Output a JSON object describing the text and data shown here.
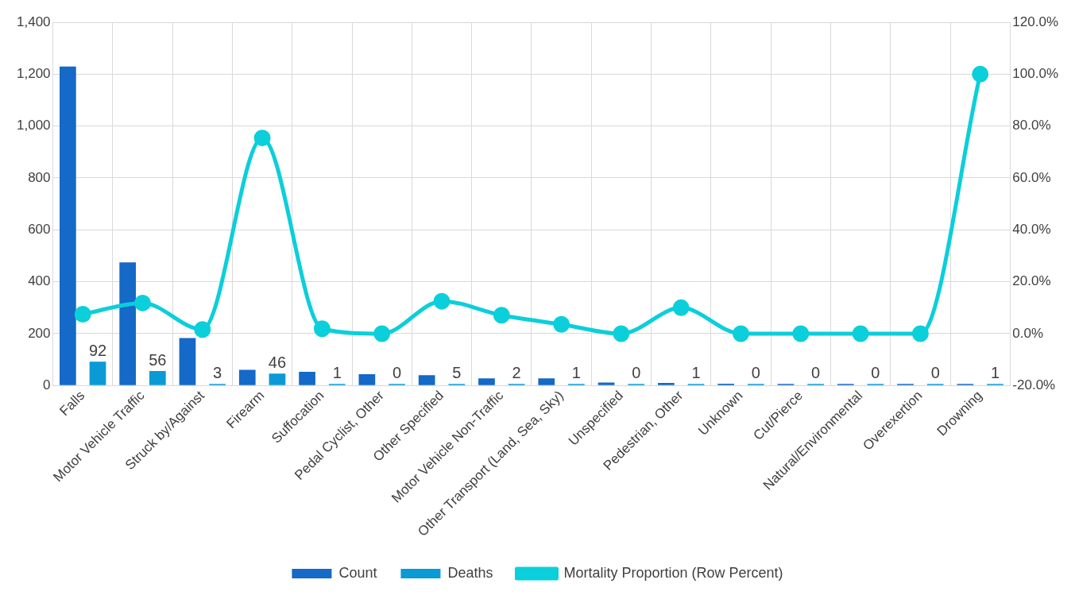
{
  "chart_data": {
    "type": "bar",
    "categories": [
      "Falls",
      "Motor Vehicle Traffic",
      "Struck by/Against",
      "Firearm",
      "Suffocation",
      "Pedal Cyclist, Other",
      "Other Specified",
      "Motor Vehicle Non-Traffic",
      "Other Transport (Land, Sea, Sky)",
      "Unspecified",
      "Pedestrian, Other",
      "Unknown",
      "Cut/Pierce",
      "Natural/Environmental",
      "Overexertion",
      "Drowning"
    ],
    "series": [
      {
        "name": "Count",
        "color": "#1569c7",
        "values": [
          1229,
          475,
          183,
          61,
          53,
          44,
          40,
          28,
          28,
          12,
          10,
          7,
          5,
          3,
          1,
          1
        ]
      },
      {
        "name": "Deaths",
        "color": "#0a9ad6",
        "values": [
          92,
          56,
          3,
          46,
          1,
          0,
          5,
          2,
          1,
          0,
          1,
          0,
          0,
          0,
          0,
          1
        ],
        "value_labels": [
          "92",
          "56",
          "3",
          "46",
          "1",
          "0",
          "5",
          "2",
          "1",
          "0",
          "1",
          "0",
          "0",
          "0",
          "0",
          "1"
        ]
      },
      {
        "name": "Mortality Proportion (Row Percent)",
        "type": "line",
        "axis": "y2",
        "color": "#0bcfda",
        "marker": "circle",
        "values": [
          7.5,
          11.8,
          1.6,
          75.4,
          1.9,
          0,
          12.5,
          7.1,
          3.6,
          0,
          10,
          0,
          0,
          0,
          0,
          100
        ]
      }
    ],
    "ylim": [
      0,
      1400
    ],
    "yticks": [
      0,
      200,
      400,
      600,
      800,
      {
        "value": 1000,
        "label": "1,000"
      },
      {
        "value": 1200,
        "label": "1,200"
      },
      {
        "value": 1400,
        "label": "1,400"
      }
    ],
    "y2lim": [
      -20,
      120
    ],
    "y2ticks": [
      {
        "value": -20,
        "label": "-20.0%"
      },
      {
        "value": 0,
        "label": "0.0%"
      },
      {
        "value": 20,
        "label": "20.0%"
      },
      {
        "value": 40,
        "label": "40.0%"
      },
      {
        "value": 60,
        "label": "60.0%"
      },
      {
        "value": 80,
        "label": "80.0%"
      },
      {
        "value": 100,
        "label": "100.0%"
      },
      {
        "value": 120,
        "label": "120.0%"
      }
    ],
    "grid": true,
    "legend": "bottom"
  }
}
